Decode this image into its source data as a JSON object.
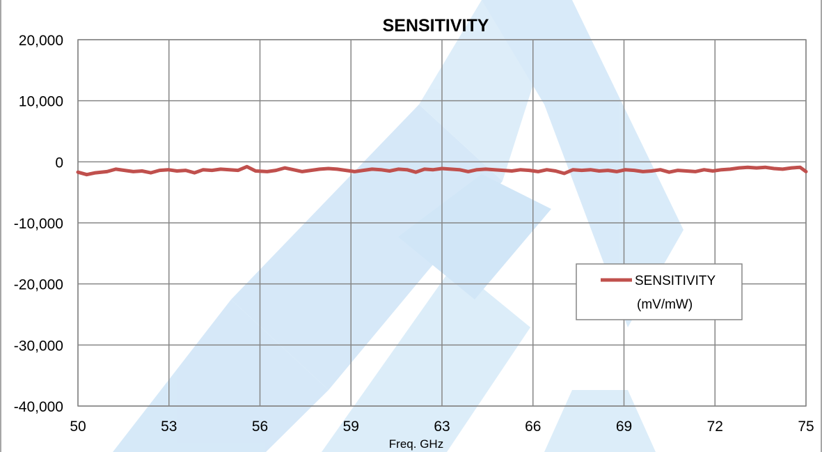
{
  "chart_data": {
    "type": "line",
    "title": "SENSITIVITY",
    "xlabel": "Freq. GHz",
    "ylabel": "",
    "xlim": [
      50,
      75
    ],
    "ylim": [
      -40000,
      20000
    ],
    "x_ticks": [
      "50",
      "53",
      "56",
      "59",
      "63",
      "66",
      "69",
      "72",
      "75"
    ],
    "y_ticks": [
      "20,000",
      "10,000",
      "0",
      "-10,000",
      "-20,000",
      "-30,000",
      "-40,000"
    ],
    "grid": true,
    "legend_position": "right",
    "legend_lines": [
      "SENSITIVITY",
      "(mV/mW)"
    ],
    "series": [
      {
        "name": "SENSITIVITY (mV/mW)",
        "color": "#c0504d",
        "x": [
          50.0,
          50.3,
          50.6,
          51.0,
          51.3,
          51.6,
          51.9,
          52.2,
          52.5,
          52.8,
          53.1,
          53.4,
          53.7,
          54.0,
          54.3,
          54.6,
          54.9,
          55.2,
          55.5,
          55.8,
          56.1,
          56.5,
          56.8,
          57.1,
          57.4,
          57.7,
          58.0,
          58.3,
          58.6,
          58.9,
          59.2,
          59.5,
          59.8,
          60.1,
          60.4,
          60.7,
          61.0,
          61.3,
          61.6,
          61.9,
          62.2,
          62.5,
          62.8,
          63.1,
          63.4,
          63.7,
          64.0,
          64.3,
          64.6,
          64.9,
          65.2,
          65.5,
          65.8,
          66.1,
          66.4,
          66.7,
          67.0,
          67.3,
          67.6,
          67.9,
          68.2,
          68.5,
          68.8,
          69.1,
          69.4,
          69.7,
          70.0,
          70.3,
          70.6,
          70.9,
          71.2,
          71.5,
          71.8,
          72.1,
          72.4,
          72.7,
          73.0,
          73.3,
          73.6,
          73.9,
          74.2,
          74.5,
          74.8,
          75.0
        ],
        "values": [
          -1700,
          -2100,
          -1800,
          -1600,
          -1200,
          -1400,
          -1600,
          -1500,
          -1800,
          -1400,
          -1300,
          -1500,
          -1400,
          -1800,
          -1300,
          -1400,
          -1200,
          -1300,
          -1400,
          -800,
          -1500,
          -1600,
          -1400,
          -1000,
          -1300,
          -1600,
          -1400,
          -1200,
          -1100,
          -1200,
          -1400,
          -1600,
          -1400,
          -1200,
          -1300,
          -1500,
          -1200,
          -1300,
          -1700,
          -1200,
          -1300,
          -1100,
          -1200,
          -1300,
          -1600,
          -1300,
          -1200,
          -1300,
          -1400,
          -1500,
          -1300,
          -1400,
          -1600,
          -1300,
          -1500,
          -1900,
          -1300,
          -1400,
          -1300,
          -1500,
          -1400,
          -1600,
          -1300,
          -1400,
          -1600,
          -1500,
          -1300,
          -1700,
          -1400,
          -1500,
          -1600,
          -1300,
          -1500,
          -1300,
          -1200,
          -1000,
          -900,
          -1000,
          -900,
          -1100,
          -1200,
          -1000,
          -900,
          -1600
        ]
      }
    ]
  }
}
